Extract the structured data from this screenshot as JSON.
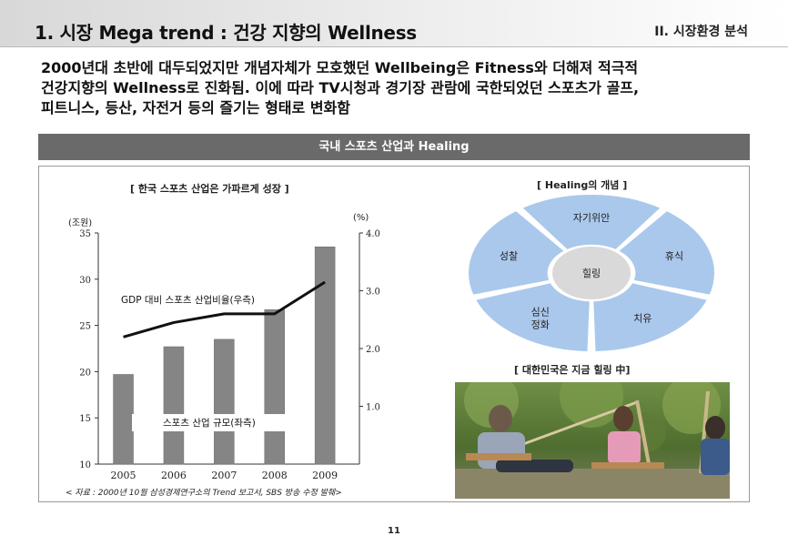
{
  "header": {
    "title": "1. 시장 Mega trend : 건강 지향의 Wellness",
    "section": "II. 시장환경 분석"
  },
  "intro": {
    "lines": [
      "2000년대 초반에 대두되었지만 개념자체가 모호했던 Wellbeing은 Fitness와 더해져 적극적",
      "건강지향의 Wellness로 진화됨. 이에 따라 TV시청과 경기장 관람에 국한되었던 스포츠가 골프,",
      "피트니스, 등산, 자전거 등의 즐기는 형태로 변화함"
    ]
  },
  "band": {
    "title": "국내 스포츠 산업과 Healing"
  },
  "chart_data": {
    "type": "bar",
    "title": "[ 한국 스포츠 산업은 가파르게 성장 ]",
    "categories": [
      "2005",
      "2006",
      "2007",
      "2008",
      "2009"
    ],
    "y_left_unit": "(조원)",
    "y_right_unit": "(%)",
    "ylim_left": [
      10,
      35
    ],
    "ylim_right": [
      0,
      4.0
    ],
    "yticks_left": [
      "10",
      "15",
      "20",
      "25",
      "30",
      "35"
    ],
    "yticks_right": [
      "1.0",
      "2.0",
      "3.0",
      "4.0"
    ],
    "series": [
      {
        "name": "스포츠 산업 규모(좌측)",
        "axis": "left",
        "kind": "bar",
        "values": [
          19.7,
          22.7,
          23.5,
          26.7,
          33.5
        ]
      },
      {
        "name": "GDP 대비 스포츠 산업비율(우측)",
        "axis": "right",
        "kind": "line",
        "values": [
          2.2,
          2.45,
          2.6,
          2.6,
          3.15
        ]
      }
    ],
    "source": "< 자료 : 2000년 10월 삼성경제연구소의 Trend 보고서, SBS 방송 수정 발췌>"
  },
  "healing": {
    "title": "[ Healing의 개념 ]",
    "center": "힐링",
    "segments": [
      "자기위안",
      "휴식",
      "치유",
      "심신 정화",
      "성찰"
    ],
    "fill_color": "#aac8ec",
    "center_color": "#d9d9d9"
  },
  "photo": {
    "caption": "[ 대한민국은 지금 힐링 中]"
  },
  "page": {
    "number": "11"
  }
}
